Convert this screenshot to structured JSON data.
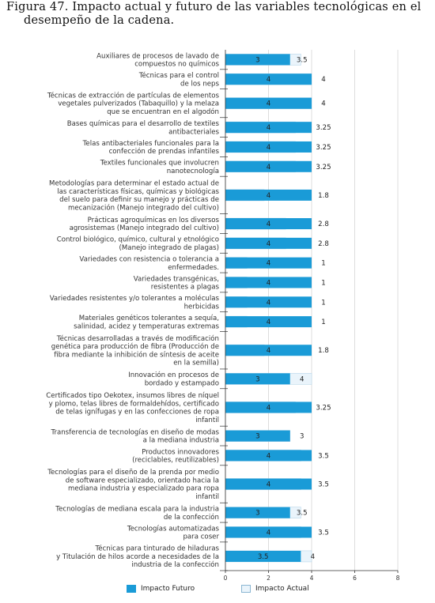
{
  "figure": {
    "title_line1": "Figura 47. Impacto actual y futuro de las variables tecnológicas en el",
    "title_line2": "desempeño de la cadena."
  },
  "colors": {
    "future": "#1a9bd7",
    "actual": "#eaf4fb",
    "actual_border": "#b9d7ea",
    "divider": "#333333",
    "grid": "#dddddd"
  },
  "chart_data": {
    "type": "bar",
    "orientation": "horizontal",
    "xlim": [
      0,
      8
    ],
    "xticks": [
      "0",
      "2",
      "4",
      "6",
      "8"
    ],
    "legend_position": "bottom",
    "series": [
      {
        "name": "Impacto Futuro",
        "values": [
          3,
          4,
          4,
          4,
          4,
          4,
          4,
          4,
          4,
          4,
          4,
          4,
          4,
          4,
          3,
          4,
          3,
          4,
          4,
          3,
          4,
          3.5
        ]
      },
      {
        "name": "Impacto Actual",
        "values": [
          3.5,
          4,
          4,
          3.25,
          3.25,
          3.25,
          1.8,
          2.8,
          2.8,
          1,
          1,
          1,
          1,
          1.8,
          4,
          3.25,
          3,
          3.5,
          3.5,
          3.5,
          3.5,
          4
        ]
      }
    ],
    "categories": [
      [
        "Auxiliares de procesos de lavado de",
        "compuestos no químicos"
      ],
      [
        "Técnicas para el control",
        "de los neps"
      ],
      [
        "Técnicas de extracción de partículas de elementos",
        "vegetales pulverizados (Tabaquillo) y la melaza",
        "que se encuentran en el algodón"
      ],
      [
        "Bases químicas para el desarrollo de textiles",
        "antibacteriales"
      ],
      [
        "Telas antibacteriales funcionales para la",
        "confección de prendas infantiles"
      ],
      [
        "Textiles funcionales que involucren",
        "nanotecnología"
      ],
      [
        "Metodologías para determinar el estado actual de",
        "las características físicas, químicas y biológicas",
        "del suelo para definir su manejo y prácticas de",
        "mecanización (Manejo integrado del cultivo)"
      ],
      [
        "Prácticas agroquímicas en los diversos",
        "agrosistemas (Manejo integrado del cultivo)"
      ],
      [
        "Control biológico, químico, cultural y etnológico",
        "(Manejo integrado de plagas)"
      ],
      [
        "Variedades con resistencia o tolerancia a",
        "enfermedades."
      ],
      [
        "Variedades transgénicas,",
        "resistentes a plagas"
      ],
      [
        "Variedades resistentes y/o tolerantes a moléculas",
        "herbicidas"
      ],
      [
        "Materiales genéticos tolerantes a sequía,",
        "salinidad, acidez y temperaturas extremas"
      ],
      [
        "Técnicas desarrolladas a través de modificación",
        "genética para producción de fibra (Producción de",
        "fibra mediante la inhibición de síntesis de aceite",
        "en la semilla)"
      ],
      [
        "Innovación en procesos de",
        "bordado y estampado"
      ],
      [
        "Certificados tipo Oekotex, insumos libres de níquel",
        "y plomo, telas libres de formaldehídos, certificado",
        "de telas ignífugas y en las confecciones de ropa",
        "infantil"
      ],
      [
        "Transferencia de tecnologías en diseño de modas",
        "a la mediana industria"
      ],
      [
        "Productos innovadores",
        "(reciclables, reutilizables)"
      ],
      [
        "Tecnologías para el diseño de la prenda por medio",
        "de software especializado, orientado hacia la",
        "mediana industria y especializado para ropa",
        "infantil"
      ],
      [
        "Tecnologías de mediana escala para la industria",
        "de la confección"
      ],
      [
        "Tecnologías automatizadas",
        "para coser"
      ],
      [
        "Técnicas para tinturado de hiladuras",
        "y Titulación de hilos acorde a necesidades de la",
        "industria de la confección"
      ]
    ],
    "future_labels": [
      "3",
      "4",
      "4",
      "4",
      "4",
      "4",
      "4",
      "4",
      "4",
      "4",
      "4",
      "4",
      "4",
      "4",
      "3",
      "4",
      "3",
      "4",
      "4",
      "3",
      "4",
      "3.5"
    ],
    "actual_labels": [
      "3.5",
      "4",
      "4",
      "3.25",
      "3.25",
      "3.25",
      "1.8",
      "2.8",
      "2.8",
      "1",
      "1",
      "1",
      "1",
      "1.8",
      "4",
      "3.25",
      "3",
      "3.5",
      "3.5",
      "3.5",
      "3.5",
      "4"
    ]
  }
}
